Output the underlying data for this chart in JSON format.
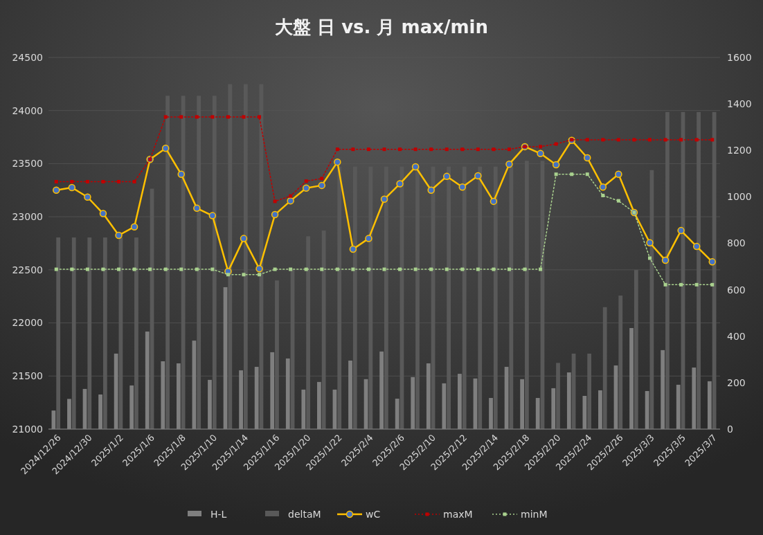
{
  "chart_data": {
    "type": "bar",
    "title": "大盤 日 vs. 月 max/min",
    "categories": [
      "2024/12/26",
      null,
      "2024/12/30",
      null,
      "2025/1/2",
      null,
      "2025/1/6",
      null,
      "2025/1/8",
      null,
      "2025/1/10",
      null,
      "2025/1/14",
      null,
      "2025/1/16",
      null,
      "2025/1/20",
      null,
      "2025/1/22",
      null,
      "2025/2/4",
      null,
      "2025/2/6",
      null,
      "2025/2/10",
      null,
      "2025/2/12",
      null,
      "2025/2/14",
      null,
      "2025/2/18",
      null,
      "2025/2/20",
      null,
      "2025/2/24",
      null,
      "2025/2/26",
      null,
      "2025/3/3",
      null,
      "2025/3/5",
      null,
      "2025/3/7"
    ],
    "series": [
      {
        "name": "H-L",
        "axis": "y2",
        "color": "#7f7f7f",
        "values": [
          80,
          130,
          173,
          149,
          325,
          188,
          420,
          292,
          283,
          381,
          212,
          611,
          253,
          268,
          331,
          304,
          170,
          203,
          170,
          295,
          215,
          334,
          131,
          224,
          283,
          197,
          238,
          218,
          134,
          268,
          215,
          134,
          176,
          244,
          143,
          167,
          274,
          435,
          164,
          340,
          191,
          265,
          206
        ]
      },
      {
        "name": "deltaM",
        "axis": "y2",
        "color": "#595959",
        "values": [
          825,
          825,
          825,
          825,
          825,
          825,
          1035,
          1435,
          1435,
          1435,
          1435,
          1485,
          1485,
          1485,
          640,
          690,
          830,
          855,
          1130,
          1130,
          1130,
          1130,
          1130,
          1130,
          1130,
          1130,
          1130,
          1130,
          1130,
          1130,
          1155,
          1155,
          285,
          325,
          325,
          525,
          575,
          685,
          1115,
          1365,
          1365,
          1365,
          1365
        ]
      },
      {
        "name": "wC",
        "type": "line",
        "color": "#ffc000",
        "marker": "circle",
        "line_style": "solid",
        "values": [
          23250,
          23275,
          23185,
          23030,
          22825,
          22905,
          23540,
          23645,
          23400,
          23080,
          23010,
          22485,
          22795,
          22510,
          23020,
          23150,
          23270,
          23295,
          23515,
          22695,
          22795,
          23165,
          23310,
          23470,
          23250,
          23380,
          23280,
          23385,
          23145,
          23495,
          23660,
          23595,
          23490,
          23720,
          23555,
          23280,
          23400,
          23040,
          22755,
          22590,
          22870,
          22720,
          22575
        ]
      },
      {
        "name": "maxM",
        "type": "line",
        "color": "#c00000",
        "marker": "square",
        "line_style": "dotted",
        "values": [
          23330,
          23330,
          23330,
          23330,
          23330,
          23330,
          23540,
          23940,
          23940,
          23940,
          23940,
          23940,
          23940,
          23940,
          23145,
          23195,
          23335,
          23360,
          23635,
          23635,
          23635,
          23635,
          23635,
          23635,
          23635,
          23635,
          23635,
          23635,
          23635,
          23635,
          23660,
          23660,
          23685,
          23725,
          23725,
          23725,
          23725,
          23725,
          23725,
          23725,
          23725,
          23725,
          23725
        ]
      },
      {
        "name": "minM",
        "type": "line",
        "color": "#a9d18e",
        "marker": "square",
        "line_style": "dotted",
        "values": [
          22505,
          22505,
          22505,
          22505,
          22505,
          22505,
          22505,
          22505,
          22505,
          22505,
          22505,
          22455,
          22455,
          22455,
          22505,
          22505,
          22505,
          22505,
          22505,
          22505,
          22505,
          22505,
          22505,
          22505,
          22505,
          22505,
          22505,
          22505,
          22505,
          22505,
          22505,
          22505,
          23400,
          23400,
          23400,
          23200,
          23150,
          23040,
          22610,
          22360,
          22360,
          22360,
          22360
        ]
      }
    ],
    "ylim": [
      21000,
      24500
    ],
    "yticks": [
      21000,
      21500,
      22000,
      22500,
      23000,
      23500,
      24000,
      24500
    ],
    "y2lim": [
      0,
      1600
    ],
    "y2ticks": [
      0,
      200,
      400,
      600,
      800,
      1000,
      1200,
      1400,
      1600
    ],
    "grid": "y",
    "legend": "bottom"
  }
}
